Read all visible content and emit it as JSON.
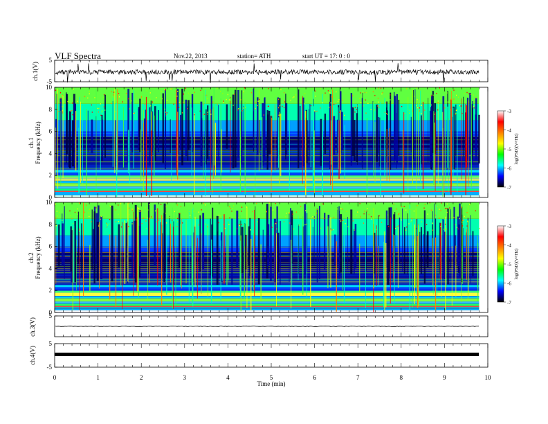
{
  "header": {
    "title": "VLF  Spectra",
    "date": "Nov.22, 2013",
    "station": "station= ATH",
    "start": "start  UT  =    17: 0  : 0"
  },
  "colorbar": {
    "label": "log(PSD)(V²/Hz)",
    "ticks": [
      "-3",
      "-4",
      "-5",
      "-6",
      "-7"
    ],
    "colors": [
      "#ffffff",
      "#ff0000",
      "#ff8000",
      "#ffff00",
      "#00ff00",
      "#00ffff",
      "#0000ff",
      "#000000"
    ]
  },
  "chart_data": [
    {
      "type": "line",
      "name": "ch1-waveform",
      "ylabel": "ch.1(V)",
      "ylim": [
        -5,
        5
      ],
      "yticks": [
        "5",
        "-5"
      ],
      "x_range": [
        0,
        9.8
      ],
      "baseline_v": -0.5,
      "note_values": "noisy waveform, amplitude ~ ±1 V with spikes to ±5 V"
    },
    {
      "type": "heatmap",
      "name": "ch1-spectrogram",
      "ylabel": "Frequency  (kHz)",
      "ylabel_top": "ch.1",
      "ylim": [
        0,
        10
      ],
      "yticks": [
        "0",
        "2",
        "4",
        "6",
        "8",
        "10"
      ],
      "x_range": [
        0,
        9.8
      ],
      "scale": "log(PSD)(V²/Hz)",
      "zlim": [
        -7,
        -3
      ]
    },
    {
      "type": "heatmap",
      "name": "ch2-spectrogram",
      "ylabel": "Frequency  (kHz)",
      "ylabel_top": "ch.2",
      "ylim": [
        0,
        10
      ],
      "yticks": [
        "0",
        "2",
        "4",
        "6",
        "8",
        "10"
      ],
      "x_range": [
        0,
        9.8
      ],
      "scale": "log(PSD)(V²/Hz)",
      "zlim": [
        -7,
        -3
      ]
    },
    {
      "type": "line",
      "name": "ch3-waveform",
      "ylabel": "ch.3(V)",
      "ylim": [
        -5,
        5
      ],
      "yticks": [
        "5"
      ],
      "x_range": [
        0,
        9.8
      ],
      "baseline_v": 0.1
    },
    {
      "type": "line",
      "name": "ch4-waveform",
      "ylabel": "ch.4(V)",
      "ylim": [
        -5,
        5
      ],
      "yticks": [
        "5",
        "-5"
      ],
      "x_range": [
        0,
        9.8
      ],
      "baseline_v": -0.1
    }
  ],
  "xaxis": {
    "label": "Time  (min)",
    "ticks": [
      "0",
      "1",
      "2",
      "3",
      "4",
      "5",
      "6",
      "7",
      "8",
      "9",
      "10"
    ],
    "xlim": [
      0,
      10
    ]
  }
}
